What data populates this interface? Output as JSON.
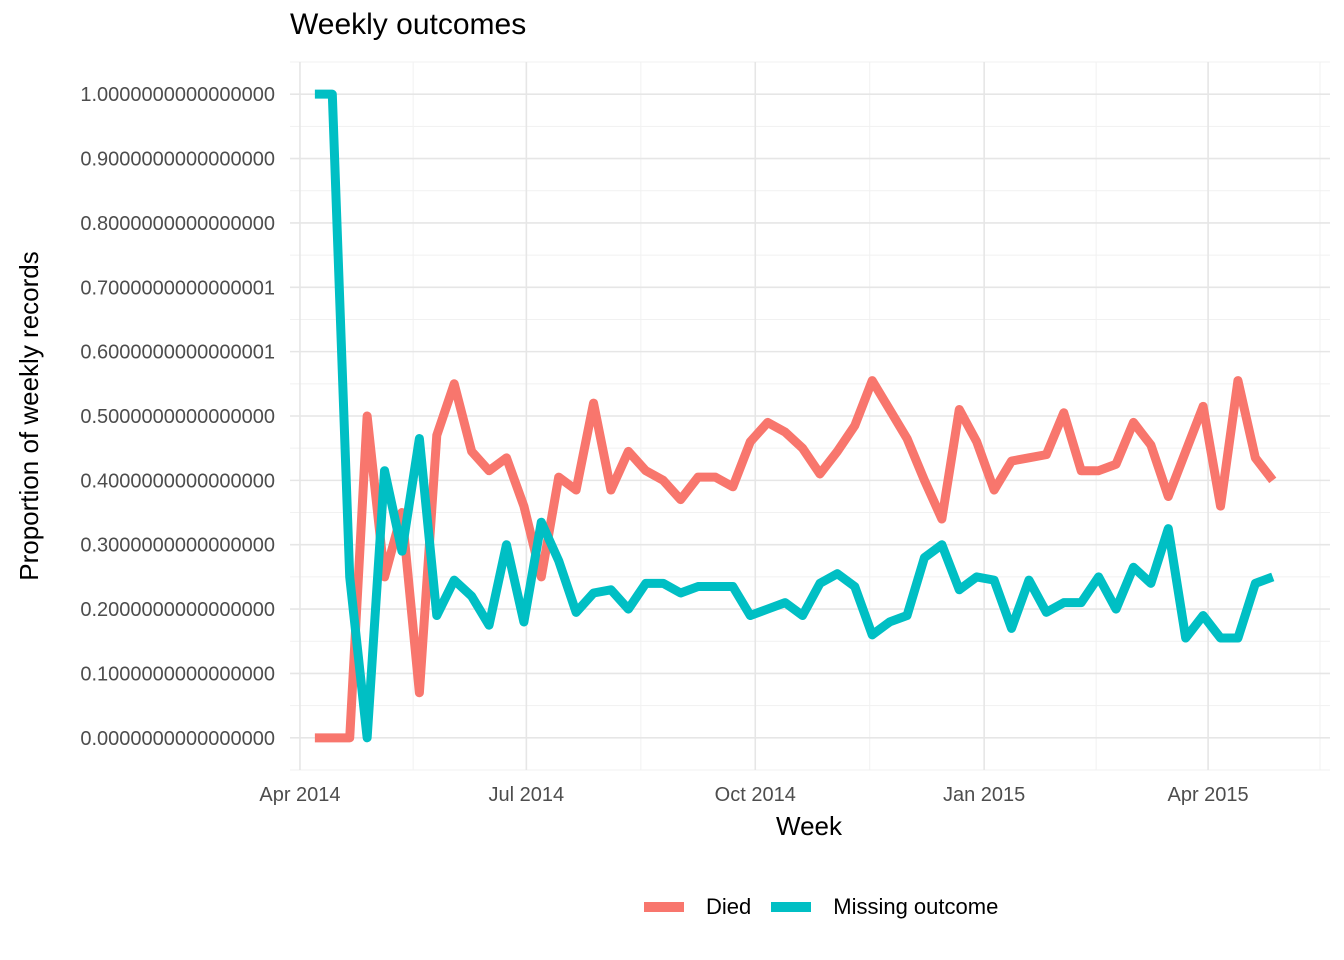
{
  "chart_data": {
    "type": "line",
    "title": "Weekly outcomes",
    "xlabel": "Week",
    "ylabel": "Proportion of weekly records",
    "ylim": [
      -0.05,
      1.05
    ],
    "xlim": [
      "2014-03-28",
      "2015-05-20"
    ],
    "x_ticks": [
      {
        "date": "2014-04-01",
        "label": "Apr 2014"
      },
      {
        "date": "2014-07-01",
        "label": "Jul 2014"
      },
      {
        "date": "2014-10-01",
        "label": "Oct 2014"
      },
      {
        "date": "2015-01-01",
        "label": "Jan 2015"
      },
      {
        "date": "2015-04-01",
        "label": "Apr 2015"
      }
    ],
    "y_ticks": [
      {
        "value": 0.0,
        "label": "0.0000000000000000"
      },
      {
        "value": 0.1,
        "label": "0.1000000000000000"
      },
      {
        "value": 0.2,
        "label": "0.2000000000000000"
      },
      {
        "value": 0.3,
        "label": "0.3000000000000000"
      },
      {
        "value": 0.4,
        "label": "0.4000000000000000"
      },
      {
        "value": 0.5,
        "label": "0.5000000000000000"
      },
      {
        "value": 0.6,
        "label": "0.6000000000000001"
      },
      {
        "value": 0.7,
        "label": "0.7000000000000001"
      },
      {
        "value": 0.8,
        "label": "0.8000000000000000"
      },
      {
        "value": 0.9,
        "label": "0.9000000000000000"
      },
      {
        "value": 1.0,
        "label": "1.0000000000000000"
      }
    ],
    "grid": true,
    "legend_position": "bottom",
    "x": [
      "2014-04-07",
      "2014-04-14",
      "2014-04-21",
      "2014-04-28",
      "2014-05-05",
      "2014-05-12",
      "2014-05-19",
      "2014-05-26",
      "2014-06-02",
      "2014-06-09",
      "2014-06-16",
      "2014-06-23",
      "2014-06-30",
      "2014-07-07",
      "2014-07-14",
      "2014-07-21",
      "2014-07-28",
      "2014-08-04",
      "2014-08-11",
      "2014-08-18",
      "2014-08-25",
      "2014-09-01",
      "2014-09-08",
      "2014-09-15",
      "2014-09-22",
      "2014-09-29",
      "2014-10-06",
      "2014-10-13",
      "2014-10-20",
      "2014-10-27",
      "2014-11-03",
      "2014-11-10",
      "2014-11-17",
      "2014-11-24",
      "2014-12-01",
      "2014-12-08",
      "2014-12-15",
      "2014-12-22",
      "2014-12-29",
      "2015-01-05",
      "2015-01-12",
      "2015-01-19",
      "2015-01-26",
      "2015-02-02",
      "2015-02-09",
      "2015-02-16",
      "2015-02-23",
      "2015-03-02",
      "2015-03-09",
      "2015-03-16",
      "2015-03-23",
      "2015-03-30",
      "2015-04-06",
      "2015-04-13",
      "2015-04-20",
      "2015-04-27"
    ],
    "series": [
      {
        "name": "Died",
        "color": "#F8766D",
        "values": [
          0.0,
          0.0,
          0.0,
          0.5,
          0.25,
          0.35,
          0.07,
          0.47,
          0.55,
          0.445,
          0.415,
          0.435,
          0.36,
          0.25,
          0.405,
          0.385,
          0.52,
          0.385,
          0.445,
          0.415,
          0.4,
          0.37,
          0.405,
          0.405,
          0.39,
          0.46,
          0.49,
          0.475,
          0.45,
          0.41,
          0.445,
          0.485,
          0.555,
          0.51,
          0.465,
          0.4,
          0.34,
          0.51,
          0.46,
          0.385,
          0.43,
          0.435,
          0.44,
          0.505,
          0.415,
          0.415,
          0.425,
          0.49,
          0.455,
          0.375,
          0.445,
          0.515,
          0.36,
          0.555,
          0.435,
          0.4
        ]
      },
      {
        "name": "Missing outcome",
        "color": "#00BFC4",
        "values": [
          1.0,
          1.0,
          0.25,
          0.0,
          0.415,
          0.29,
          0.465,
          0.19,
          0.245,
          0.22,
          0.175,
          0.3,
          0.18,
          0.335,
          0.275,
          0.195,
          0.225,
          0.23,
          0.2,
          0.24,
          0.24,
          0.225,
          0.235,
          0.235,
          0.235,
          0.19,
          0.2,
          0.21,
          0.19,
          0.24,
          0.255,
          0.235,
          0.16,
          0.18,
          0.19,
          0.28,
          0.3,
          0.23,
          0.25,
          0.245,
          0.17,
          0.245,
          0.195,
          0.21,
          0.21,
          0.25,
          0.2,
          0.265,
          0.24,
          0.325,
          0.155,
          0.19,
          0.155,
          0.155,
          0.24,
          0.25
        ]
      }
    ]
  }
}
